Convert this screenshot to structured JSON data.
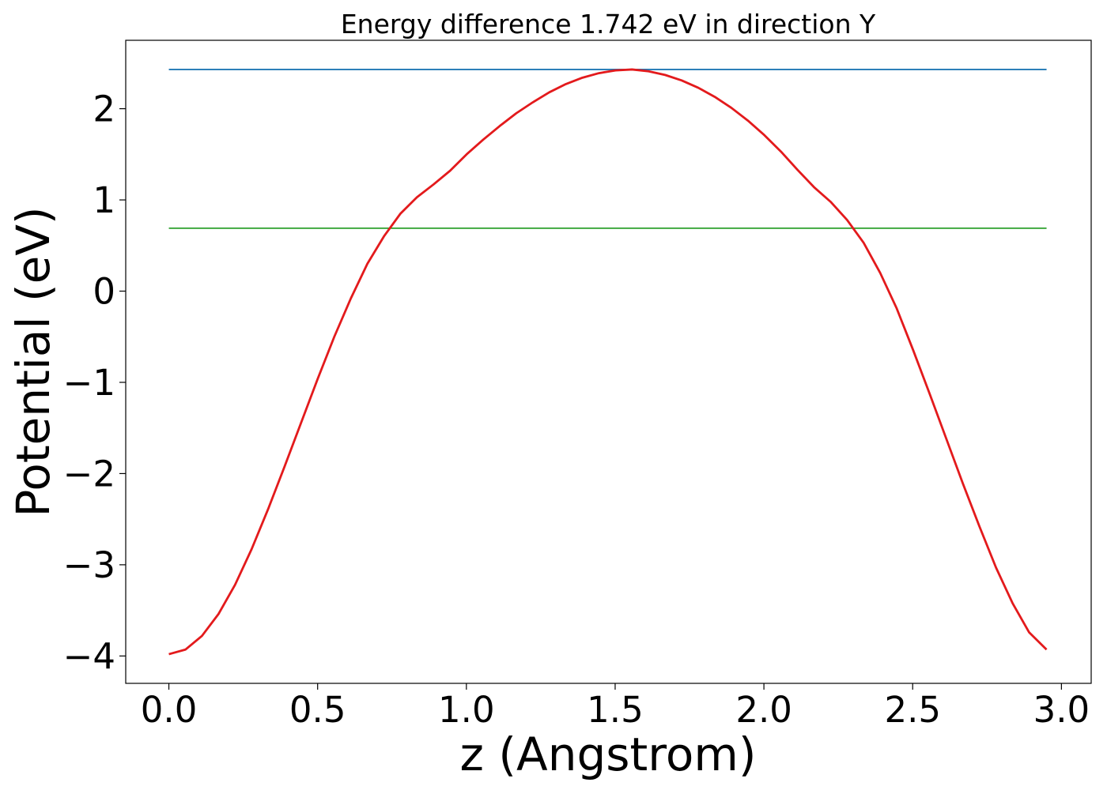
{
  "chart_data": {
    "type": "line",
    "title": "Energy difference 1.742 eV in direction Y",
    "xlabel": "z (Angstrom)",
    "ylabel": "Potential (eV)",
    "xlim": [
      -0.145,
      3.1
    ],
    "ylim": [
      -4.3,
      2.75
    ],
    "xticks": [
      0.0,
      0.5,
      1.0,
      1.5,
      2.0,
      2.5,
      3.0
    ],
    "xtick_labels": [
      "0.0",
      "0.5",
      "1.0",
      "1.5",
      "2.0",
      "2.5",
      "3.0"
    ],
    "yticks": [
      -4,
      -3,
      -2,
      -1,
      0,
      1,
      2
    ],
    "ytick_labels": [
      "−4",
      "−3",
      "−2",
      "−1",
      "0",
      "1",
      "2"
    ],
    "grid": false,
    "series": [
      {
        "color": "#1f77b4",
        "x": [
          0.0,
          2.95
        ],
        "y": [
          2.43,
          2.43
        ]
      },
      {
        "color": "#2ca02c",
        "x": [
          0.0,
          2.95
        ],
        "y": [
          0.69,
          0.69
        ]
      },
      {
        "color": "#e31a1c",
        "x": [
          0.0,
          0.0556,
          0.1112,
          0.1668,
          0.2224,
          0.278,
          0.3336,
          0.3892,
          0.4448,
          0.5004,
          0.556,
          0.6116,
          0.6672,
          0.7228,
          0.7784,
          0.834,
          0.8896,
          0.9452,
          1.0008,
          1.0564,
          1.112,
          1.1676,
          1.2232,
          1.2788,
          1.3344,
          1.39,
          1.4456,
          1.5012,
          1.5568,
          1.6124,
          1.668,
          1.7236,
          1.7792,
          1.8348,
          1.8904,
          1.946,
          2.0016,
          2.0572,
          2.1128,
          2.1684,
          2.224,
          2.2796,
          2.3352,
          2.3908,
          2.4464,
          2.502,
          2.5576,
          2.6132,
          2.6688,
          2.7244,
          2.78,
          2.8356,
          2.8912,
          2.95
        ],
        "y": [
          -3.98,
          -3.93,
          -3.78,
          -3.54,
          -3.22,
          -2.83,
          -2.39,
          -1.92,
          -1.44,
          -0.96,
          -0.5,
          -0.08,
          0.3,
          0.6,
          0.85,
          1.03,
          1.17,
          1.32,
          1.5,
          1.66,
          1.81,
          1.95,
          2.07,
          2.18,
          2.27,
          2.34,
          2.39,
          2.42,
          2.43,
          2.41,
          2.37,
          2.31,
          2.23,
          2.13,
          2.01,
          1.87,
          1.71,
          1.53,
          1.33,
          1.14,
          0.98,
          0.78,
          0.53,
          0.2,
          -0.19,
          -0.65,
          -1.13,
          -1.62,
          -2.11,
          -2.58,
          -3.03,
          -3.42,
          -3.74,
          -3.93
        ]
      }
    ]
  }
}
